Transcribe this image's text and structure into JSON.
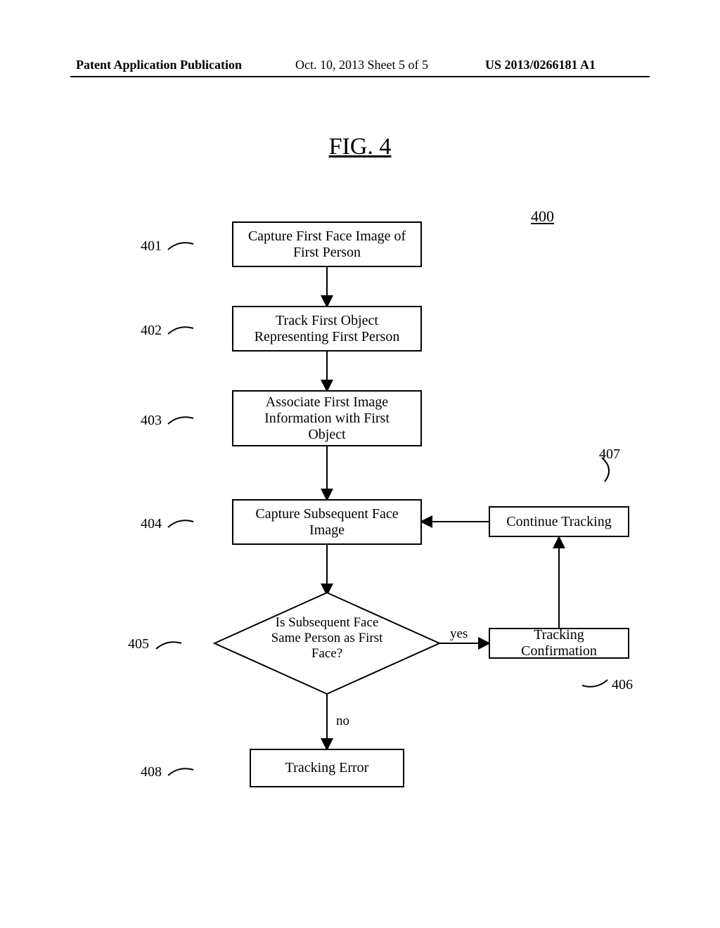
{
  "header": {
    "left": "Patent Application Publication",
    "mid": "Oct. 10, 2013  Sheet 5 of 5",
    "right": "US 2013/0266181 A1"
  },
  "figure": {
    "title": "FIG. 4",
    "number": "400"
  },
  "nodes": {
    "n401": {
      "label": "Capture First Face Image of\nFirst Person",
      "ref": "401"
    },
    "n402": {
      "label": "Track First Object\nRepresenting First Person",
      "ref": "402"
    },
    "n403": {
      "label": "Associate First Image\nInformation with First\nObject",
      "ref": "403"
    },
    "n404": {
      "label": "Capture Subsequent Face\nImage",
      "ref": "404"
    },
    "n405": {
      "label": "Is Subsequent Face\nSame Person as First\nFace?",
      "ref": "405"
    },
    "n406": {
      "label": "Tracking Confirmation",
      "ref": "406"
    },
    "n407": {
      "label": "Continue Tracking",
      "ref": "407"
    },
    "n408": {
      "label": "Tracking Error",
      "ref": "408"
    }
  },
  "edges": {
    "yes": "yes",
    "no": "no"
  },
  "style": {
    "stroke": "#000000",
    "stroke_width": 2,
    "font_family": "Times New Roman",
    "box_font_size": 20,
    "ref_font_size": 20,
    "background": "#ffffff"
  }
}
